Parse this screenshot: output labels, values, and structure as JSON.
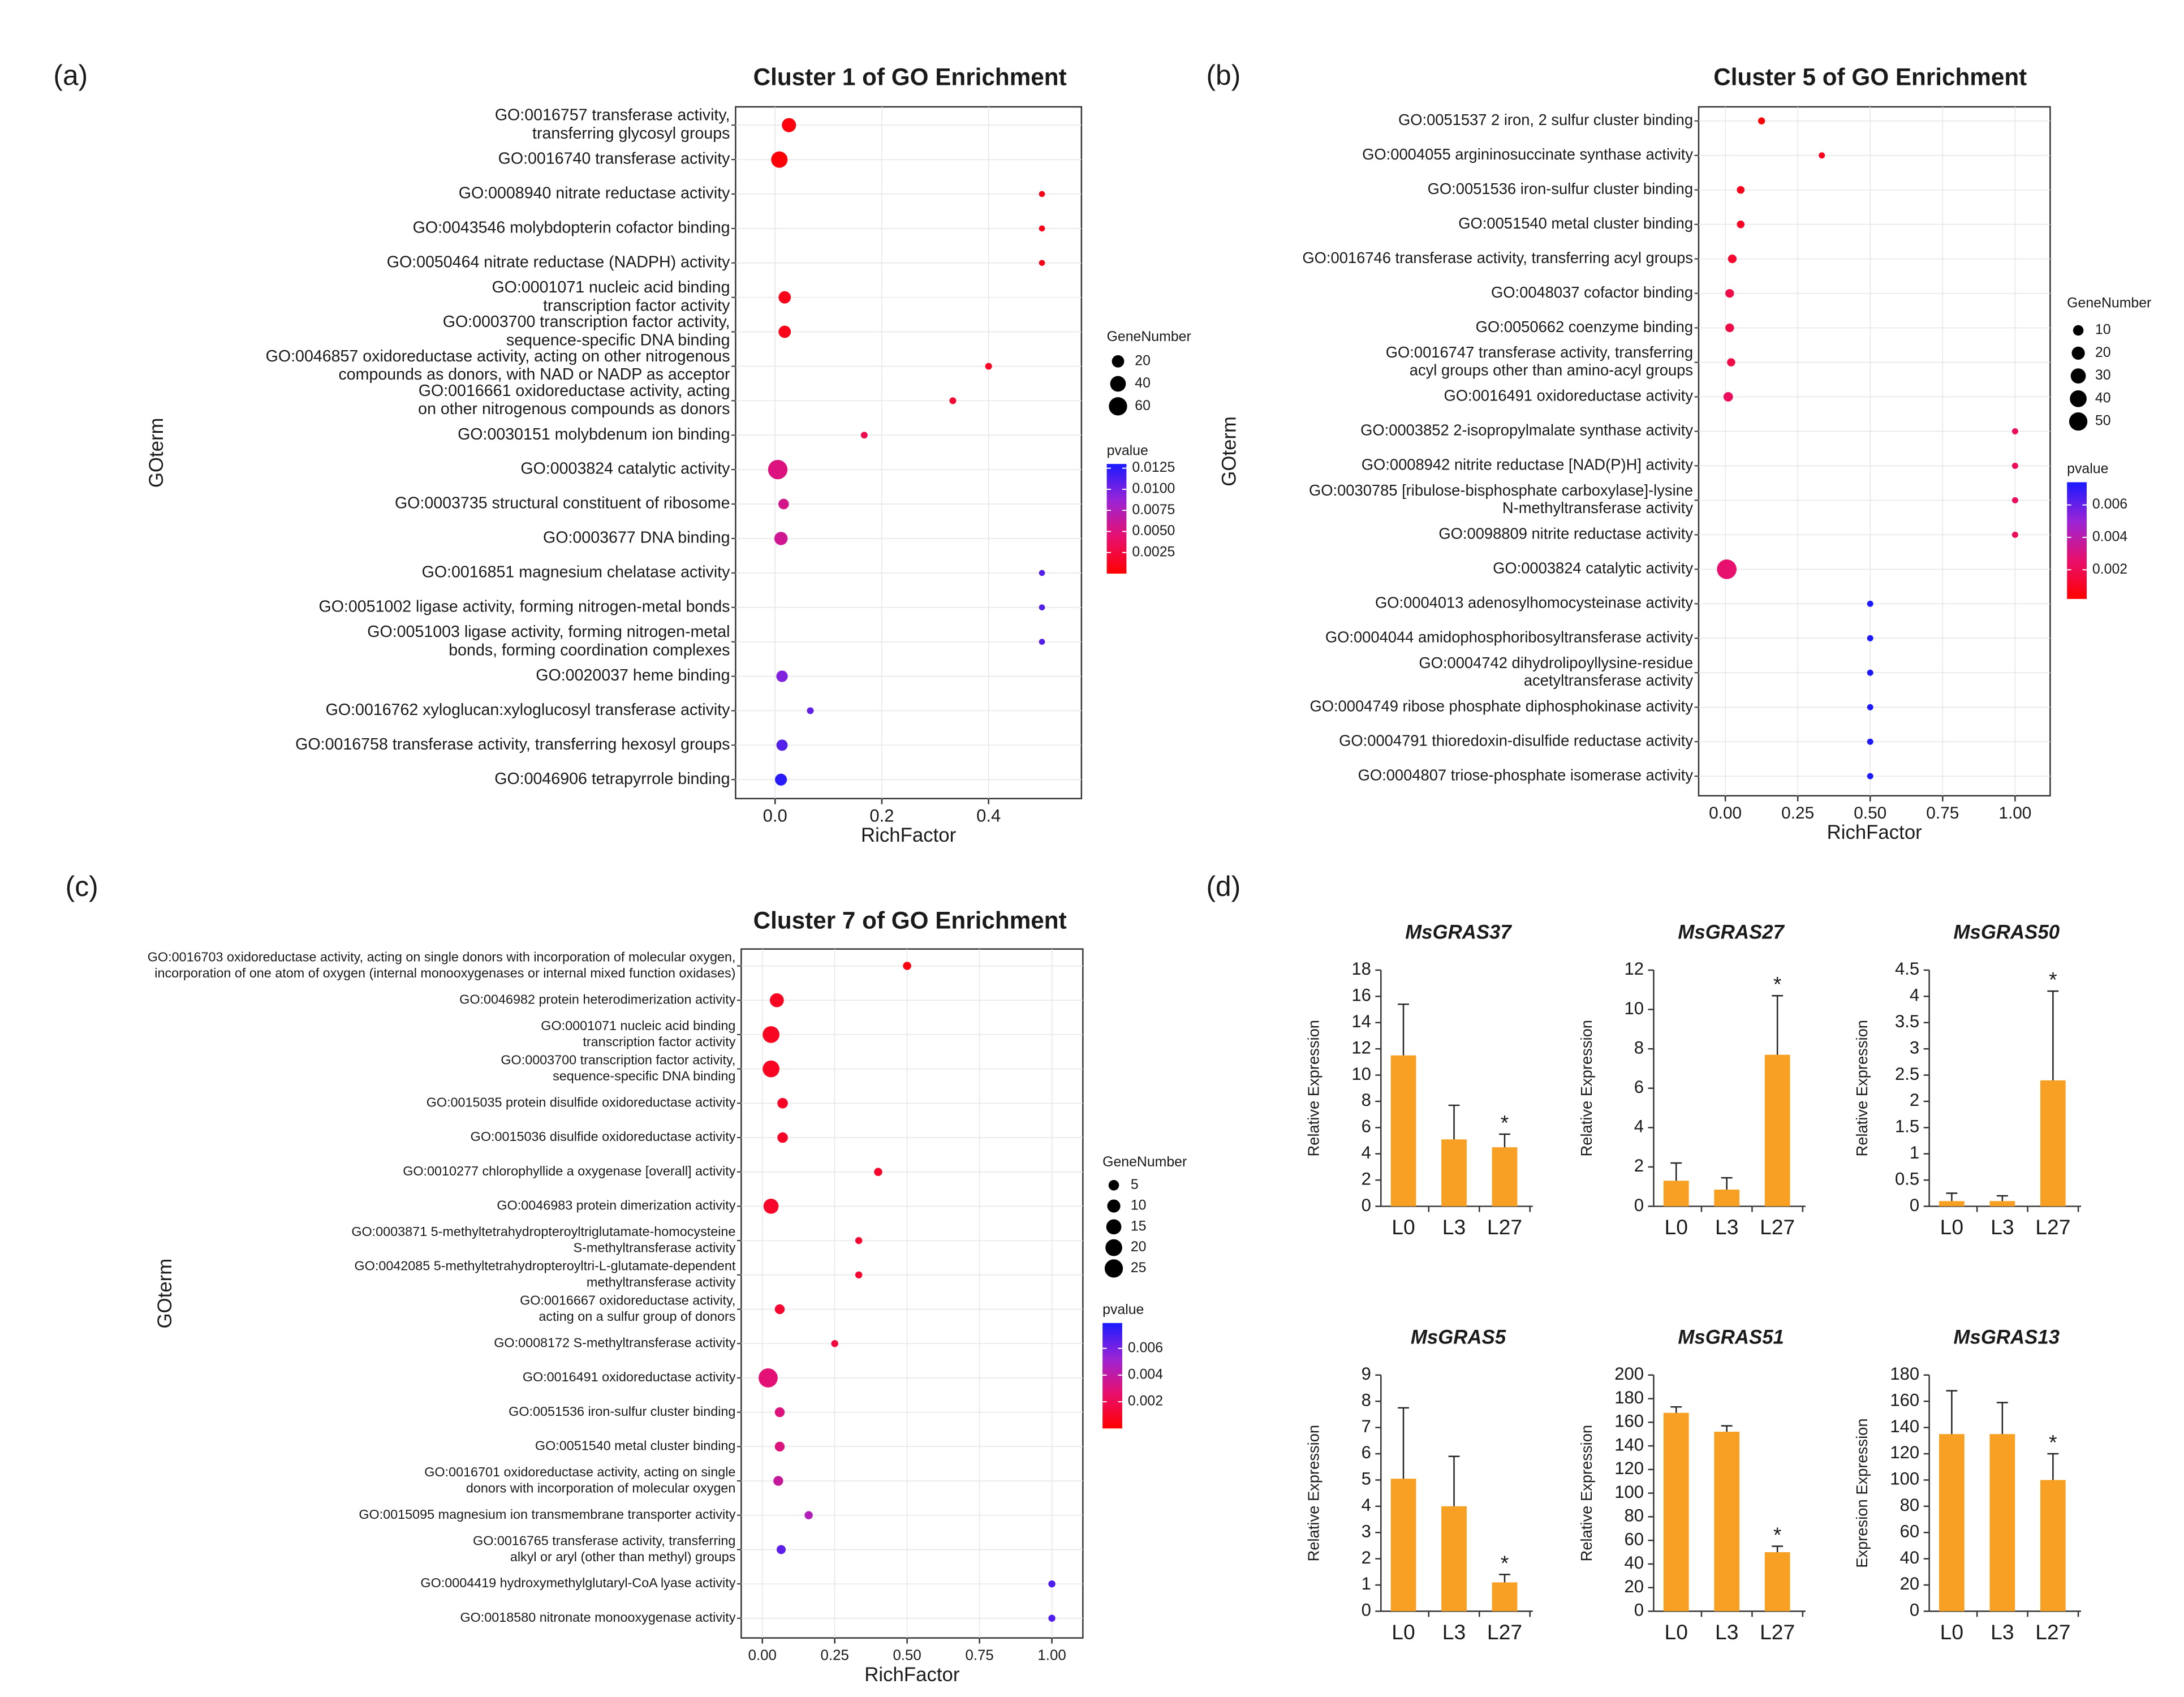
{
  "chart_data": [
    {
      "type": "dot",
      "panel": "(a)",
      "title": "Cluster 1 of GO Enrichment",
      "xlabel": "RichFactor",
      "ylabel": "GOterm",
      "grid": true,
      "categories": [
        [
          "GO:0016757 transferase activity,",
          "transferring glycosyl groups"
        ],
        [
          "GO:0016740 transferase activity"
        ],
        [
          "GO:0008940 nitrate reductase activity"
        ],
        [
          "GO:0043546 molybdopterin cofactor binding"
        ],
        [
          "GO:0050464 nitrate reductase (NADPH) activity"
        ],
        [
          "GO:0001071 nucleic acid binding",
          "transcription factor activity"
        ],
        [
          "GO:0003700 transcription factor activity,",
          "sequence-specific DNA binding"
        ],
        [
          "GO:0046857 oxidoreductase activity, acting on other nitrogenous",
          "compounds as donors, with NAD or NADP as acceptor"
        ],
        [
          "GO:0016661 oxidoreductase activity, acting",
          "on other nitrogenous compounds as donors"
        ],
        [
          "GO:0030151 molybdenum ion binding"
        ],
        [
          "GO:0003824 catalytic activity"
        ],
        [
          "GO:0003735 structural constituent of ribosome"
        ],
        [
          "GO:0003677 DNA binding"
        ],
        [
          "GO:0016851 magnesium chelatase activity"
        ],
        [
          "GO:0051002 ligase activity, forming nitrogen-metal bonds"
        ],
        [
          "GO:0051003 ligase activity, forming nitrogen-metal",
          "bonds, forming coordination complexes"
        ],
        [
          "GO:0020037 heme binding"
        ],
        [
          "GO:0016762 xyloglucan:xyloglucosyl transferase activity"
        ],
        [
          "GO:0016758 transferase activity, transferring hexosyl groups"
        ],
        [
          "GO:0046906 tetrapyrrole binding"
        ]
      ],
      "richfactor": [
        0.026,
        0.008,
        0.5,
        0.5,
        0.5,
        0.018,
        0.018,
        0.4,
        0.333,
        0.167,
        0.005,
        0.016,
        0.011,
        0.5,
        0.5,
        0.5,
        0.013,
        0.066,
        0.013,
        0.011
      ],
      "gene_number": [
        30,
        45,
        1,
        1,
        1,
        20,
        20,
        2,
        2,
        2,
        70,
        12,
        25,
        1,
        1,
        1,
        16,
        2,
        15,
        18
      ],
      "pvalue": [
        0.0005,
        0.0003,
        0.001,
        0.001,
        0.001,
        0.001,
        0.001,
        0.0015,
        0.002,
        0.003,
        0.005,
        0.0055,
        0.0058,
        0.011,
        0.011,
        0.011,
        0.0095,
        0.0105,
        0.011,
        0.0125
      ],
      "xlim": [
        -0.074,
        0.574
      ],
      "xticks": [
        {
          "value": 0,
          "label": "0.0"
        },
        0.2,
        0.4
      ],
      "size_legend": {
        "title": "GeneNumber",
        "values": [
          20,
          40,
          60
        ]
      },
      "color_legend": {
        "title": "pvalue",
        "lim": [
          0,
          0.013
        ],
        "ticks": [
          0.0125,
          {
            "value": 0.01,
            "label": "0.0100"
          },
          0.0075,
          {
            "value": 0.005,
            "label": "0.0050"
          },
          0.0025
        ],
        "colors": [
          "#ff0000",
          "#e8106e",
          "#9a24d6",
          "#1a1aff"
        ]
      }
    },
    {
      "type": "dot",
      "panel": "(b)",
      "title": "Cluster 5 of GO Enrichment",
      "xlabel": "RichFactor",
      "ylabel": "GOterm",
      "grid": true,
      "categories": [
        [
          "GO:0051537 2 iron, 2 sulfur cluster binding"
        ],
        [
          "GO:0004055 argininosuccinate synthase activity"
        ],
        [
          "GO:0051536 iron-sulfur cluster binding"
        ],
        [
          "GO:0051540 metal cluster binding"
        ],
        [
          "GO:0016746 transferase activity, transferring acyl groups"
        ],
        [
          "GO:0048037 cofactor binding"
        ],
        [
          "GO:0050662 coenzyme binding"
        ],
        [
          "GO:0016747 transferase activity, transferring",
          "acyl groups other than amino-acyl groups"
        ],
        [
          "GO:0016491 oxidoreductase activity"
        ],
        [
          "GO:0003852 2-isopropylmalate synthase activity"
        ],
        [
          "GO:0008942 nitrite reductase [NAD(P)H] activity"
        ],
        [
          "GO:0030785 [ribulose-bisphosphate carboxylase]-lysine",
          "N-methyltransferase activity"
        ],
        [
          "GO:0098809 nitrite reductase activity"
        ],
        [
          "GO:0003824 catalytic activity"
        ],
        [
          "GO:0004013 adenosylhomocysteinase activity"
        ],
        [
          "GO:0004044 amidophosphoribosyltransferase activity"
        ],
        [
          "GO:0004742 dihydrolipoyllysine-residue",
          "acetyltransferase activity"
        ],
        [
          "GO:0004749 ribose phosphate diphosphokinase activity"
        ],
        [
          "GO:0004791 thioredoxin-disulfide reductase activity"
        ],
        [
          "GO:0004807 triose-phosphate isomerase activity"
        ]
      ],
      "richfactor": [
        0.125,
        0.333,
        0.053,
        0.053,
        0.024,
        0.015,
        0.015,
        0.02,
        0.01,
        1,
        1,
        1,
        1,
        0.005,
        0.5,
        0.5,
        0.5,
        0.5,
        0.5,
        0.5
      ],
      "gene_number": [
        2,
        1,
        3,
        3,
        5,
        5,
        5,
        4,
        7,
        1,
        1,
        1,
        1,
        60,
        1,
        1,
        1,
        1,
        1,
        1
      ],
      "pvalue": [
        0.0004,
        0.0008,
        0.0008,
        0.001,
        0.0012,
        0.0018,
        0.0018,
        0.0018,
        0.0022,
        0.0022,
        0.0022,
        0.0022,
        0.0022,
        0.0026,
        0.0073,
        0.0073,
        0.0073,
        0.0073,
        0.0073,
        0.0073
      ],
      "xlim": [
        -0.092,
        1.121
      ],
      "xticks": [
        {
          "value": 0,
          "label": "0.00"
        },
        0.25,
        {
          "value": 0.5,
          "label": "0.50"
        },
        0.75,
        {
          "value": 1,
          "label": "1.00"
        }
      ],
      "size_legend": {
        "title": "GeneNumber",
        "values": [
          10,
          20,
          30,
          40,
          50
        ]
      },
      "color_legend": {
        "title": "pvalue",
        "lim": [
          0.0002,
          0.0074
        ],
        "ticks": [
          0.006,
          0.004,
          0.002
        ],
        "colors": [
          "#ff0000",
          "#e8106e",
          "#9a24d6",
          "#1a1aff"
        ]
      }
    },
    {
      "type": "dot",
      "panel": "(c)",
      "title": "Cluster 7 of GO Enrichment",
      "xlabel": "RichFactor",
      "ylabel": "GOterm",
      "grid": true,
      "categories": [
        [
          "GO:0016703 oxidoreductase activity, acting on single donors with incorporation of molecular oxygen,",
          "incorporation of one atom of oxygen (internal monooxygenases or internal mixed function oxidases)"
        ],
        [
          "GO:0046982 protein heterodimerization activity"
        ],
        [
          "GO:0001071 nucleic acid binding",
          "transcription factor activity"
        ],
        [
          "GO:0003700 transcription factor activity,",
          "sequence-specific DNA binding"
        ],
        [
          "GO:0015035 protein disulfide oxidoreductase activity"
        ],
        [
          "GO:0015036 disulfide oxidoreductase activity"
        ],
        [
          "GO:0010277 chlorophyllide a oxygenase [overall] activity"
        ],
        [
          "GO:0046983 protein dimerization activity"
        ],
        [
          "GO:0003871 5-methyltetrahydropteroyltriglutamate-homocysteine",
          "S-methyltransferase activity"
        ],
        [
          "GO:0042085 5-methyltetrahydropteroyltri-L-glutamate-dependent",
          "methyltransferase activity"
        ],
        [
          "GO:0016667 oxidoreductase activity,",
          "acting on a sulfur group of donors"
        ],
        [
          "GO:0008172 S-methyltransferase activity"
        ],
        [
          "GO:0016491 oxidoreductase activity"
        ],
        [
          "GO:0051536 iron-sulfur cluster binding"
        ],
        [
          "GO:0051540 metal cluster binding"
        ],
        [
          "GO:0016701 oxidoreductase activity, acting on single",
          "donors with incorporation of molecular oxygen"
        ],
        [
          "GO:0015095 magnesium ion transmembrane transporter activity"
        ],
        [
          "GO:0016765 transferase activity, transferring",
          "alkyl or aryl (other than methyl) groups"
        ],
        [
          "GO:0004419 hydroxymethylglutaryl-CoA lyase activity"
        ],
        [
          "GO:0018580 nitronate monooxygenase activity"
        ]
      ],
      "richfactor": [
        0.5,
        0.05,
        0.03,
        0.03,
        0.07,
        0.07,
        0.4,
        0.03,
        0.333,
        0.333,
        0.06,
        0.25,
        0.02,
        0.06,
        0.06,
        0.055,
        0.16,
        0.065,
        1,
        1
      ],
      "gene_number": [
        2,
        12,
        20,
        20,
        5,
        5,
        2,
        15,
        1,
        1,
        4,
        1,
        28,
        4,
        4,
        4,
        2,
        3,
        1,
        1
      ],
      "pvalue": [
        0.0004,
        0.0008,
        0.0008,
        0.0008,
        0.0009,
        0.0009,
        0.001,
        0.001,
        0.0012,
        0.0012,
        0.0012,
        0.0015,
        0.0028,
        0.003,
        0.003,
        0.0038,
        0.0045,
        0.0065,
        0.0068,
        0.0068
      ],
      "xlim": [
        -0.073,
        1.107
      ],
      "xticks": [
        {
          "value": 0,
          "label": "0.00"
        },
        0.25,
        {
          "value": 0.5,
          "label": "0.50"
        },
        0.75,
        {
          "value": 1,
          "label": "1.00"
        }
      ],
      "size_legend": {
        "title": "GeneNumber",
        "values": [
          5,
          10,
          15,
          20,
          25
        ]
      },
      "color_legend": {
        "title": "pvalue",
        "lim": [
          0,
          0.0079
        ],
        "ticks": [
          0.006,
          0.004,
          0.002
        ],
        "colors": [
          "#ff0000",
          "#e8106e",
          "#9a24d6",
          "#1a1aff"
        ]
      }
    },
    {
      "type": "bar",
      "panel": "(d)",
      "title": "MsGRAS37",
      "ylabel": "Relative Expression",
      "categories": [
        "L0",
        "L3",
        "L27"
      ],
      "values": [
        11.5,
        5.1,
        4.5
      ],
      "errors": [
        3.9,
        2.6,
        1.0
      ],
      "color": "#f7a023",
      "ylim": [
        0,
        18
      ],
      "yticks": [
        0,
        2,
        4,
        6,
        8,
        10,
        12,
        14,
        16,
        18
      ],
      "annotations": [
        {
          "text": "*",
          "category": "L27"
        }
      ]
    },
    {
      "type": "bar",
      "title": "MsGRAS27",
      "ylabel": "Relative Expression",
      "categories": [
        "L0",
        "L3",
        "L27"
      ],
      "values": [
        1.3,
        0.85,
        7.7
      ],
      "errors": [
        0.9,
        0.6,
        3.0
      ],
      "color": "#f7a023",
      "ylim": [
        0,
        12
      ],
      "yticks": [
        0,
        2,
        4,
        6,
        8,
        10,
        12
      ],
      "annotations": [
        {
          "text": "*",
          "category": "L27"
        }
      ]
    },
    {
      "type": "bar",
      "title": "MsGRAS50",
      "ylabel": "Relative Expression",
      "categories": [
        "L0",
        "L3",
        "L27"
      ],
      "values": [
        0.1,
        0.1,
        2.4
      ],
      "errors": [
        0.15,
        0.1,
        1.7
      ],
      "color": "#f7a023",
      "ylim": [
        0,
        4.5
      ],
      "yticks": [
        0,
        0.5,
        1,
        1.5,
        2,
        2.5,
        3,
        3.5,
        4,
        4.5
      ],
      "annotations": [
        {
          "text": "*",
          "category": "L27"
        }
      ]
    },
    {
      "type": "bar",
      "title": "MsGRAS5",
      "ylabel": "Relative Expression",
      "categories": [
        "L0",
        "L3",
        "L27"
      ],
      "values": [
        5.05,
        4.0,
        1.1
      ],
      "errors": [
        2.7,
        1.9,
        0.3
      ],
      "color": "#f7a023",
      "ylim": [
        0,
        9
      ],
      "yticks": [
        0,
        1,
        2,
        3,
        4,
        5,
        6,
        7,
        8,
        9
      ],
      "annotations": [
        {
          "text": "*",
          "category": "L27"
        }
      ]
    },
    {
      "type": "bar",
      "title": "MsGRAS51",
      "ylabel": "Relative Expression",
      "categories": [
        "L0",
        "L3",
        "L27"
      ],
      "values": [
        168,
        152,
        50
      ],
      "errors": [
        5,
        5,
        5
      ],
      "color": "#f7a023",
      "ylim": [
        0,
        200
      ],
      "yticks": [
        0,
        20,
        40,
        60,
        80,
        100,
        120,
        140,
        160,
        180,
        200
      ],
      "annotations": [
        {
          "text": "*",
          "category": "L27"
        }
      ]
    },
    {
      "type": "bar",
      "title": "MsGRAS13",
      "ylabel": "Expresion Expression",
      "categories": [
        "L0",
        "L3",
        "L27"
      ],
      "values": [
        135,
        135,
        100
      ],
      "errors": [
        33,
        24,
        20
      ],
      "color": "#f7a023",
      "ylim": [
        0,
        180
      ],
      "yticks": [
        0,
        20,
        40,
        60,
        80,
        100,
        120,
        140,
        160,
        180
      ],
      "annotations": [
        {
          "text": "*",
          "category": "L27"
        }
      ]
    }
  ]
}
